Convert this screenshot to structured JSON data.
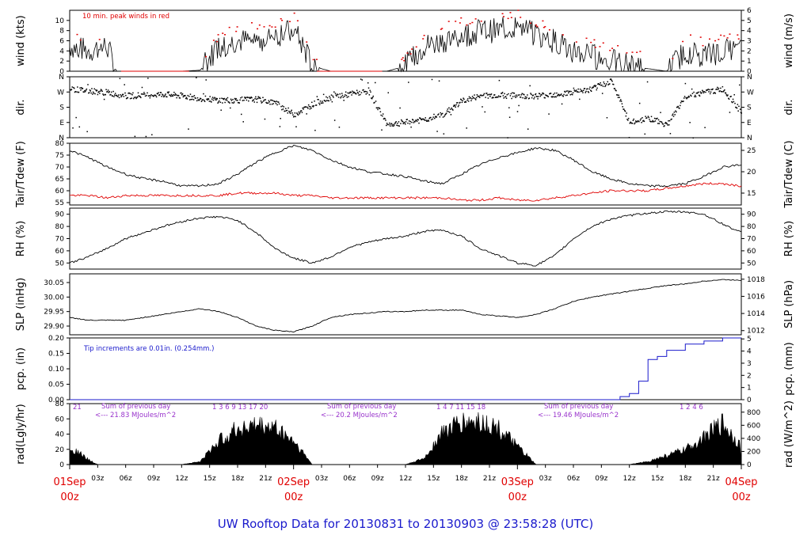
{
  "title": "UW Rooftop Data for 20130831  to  20130903 @ 23:58:28  (UTC)",
  "colors": {
    "red": "#e00000",
    "blue": "#1a1acc",
    "purple": "#9933cc",
    "black": "#000000"
  },
  "x_axis": {
    "hour_ticks": [
      "03z",
      "06z",
      "09z",
      "12z",
      "15z",
      "18z",
      "21z"
    ],
    "day_labels": [
      {
        "date": "01Sep",
        "hour": "00z"
      },
      {
        "date": "02Sep",
        "hour": "00z"
      },
      {
        "date": "03Sep",
        "hour": "00z"
      },
      {
        "date": "04Sep",
        "hour": "00z"
      }
    ]
  },
  "chart_data": [
    {
      "type": "line",
      "id": "wind",
      "ylabel_left": "wind (kts)",
      "ylabel_right": "wind (m/s)",
      "ylim": [
        0,
        12
      ],
      "yticks_left": [
        "0",
        "2",
        "4",
        "6",
        "8",
        "10"
      ],
      "ylim_right": [
        0,
        6
      ],
      "yticks_right": [
        "0",
        "1",
        "2",
        "3",
        "4",
        "5",
        "6"
      ],
      "annotation": "10 min. peak winds in red",
      "x_hours": [
        0,
        2,
        4,
        5,
        6,
        9,
        12,
        14,
        16,
        18,
        20,
        22,
        24,
        25,
        26,
        28,
        30,
        32,
        34,
        36,
        38,
        40,
        42,
        44,
        46,
        48,
        50,
        52,
        54,
        56,
        58,
        60,
        62,
        64,
        66,
        68,
        70,
        72
      ],
      "series": [
        {
          "values": [
            5,
            4,
            5,
            0,
            0,
            0,
            0,
            0.2,
            5,
            6,
            6,
            7,
            8,
            5,
            1,
            0,
            0,
            0,
            0,
            1,
            5,
            6,
            7,
            8,
            8,
            9,
            7,
            6,
            4,
            3,
            2,
            1,
            0.5,
            0,
            4,
            3,
            4,
            4
          ]
        },
        {
          "values": [
            7,
            6,
            7,
            1,
            1,
            1,
            1,
            1,
            7,
            8,
            8,
            9,
            10,
            7,
            2,
            1,
            1,
            1,
            1,
            2,
            7,
            8,
            9,
            10,
            10,
            11,
            9,
            8,
            6,
            5,
            4,
            3,
            2,
            1,
            6,
            5,
            6,
            6
          ]
        }
      ]
    },
    {
      "type": "scatter",
      "id": "dir",
      "ylabel_left": "dir.",
      "ylabel_right": "dir.",
      "yticks": [
        "N",
        "E",
        "S",
        "W",
        "N"
      ],
      "x_hours": [
        0,
        2,
        4,
        6,
        10,
        12,
        14,
        16,
        18,
        20,
        22,
        24,
        26,
        28,
        30,
        32,
        34,
        36,
        38,
        40,
        42,
        44,
        46,
        48,
        50,
        52,
        54,
        56,
        58,
        60,
        62,
        64,
        66,
        68,
        70,
        72
      ],
      "values": [
        290,
        280,
        270,
        250,
        260,
        250,
        235,
        225,
        225,
        230,
        210,
        140,
        200,
        245,
        260,
        280,
        80,
        95,
        110,
        140,
        220,
        250,
        255,
        250,
        250,
        260,
        270,
        290,
        340,
        90,
        120,
        80,
        250,
        270,
        290,
        150
      ]
    },
    {
      "type": "line",
      "id": "temp",
      "ylabel_left": "Tair/Tdew (F)",
      "ylabel_right": "Tair/Tdew (C)",
      "ylim": [
        54,
        80
      ],
      "yticks_left": [
        "55",
        "60",
        "65",
        "70",
        "75",
        "80"
      ],
      "yticks_right": [
        "15",
        "20",
        "25"
      ],
      "x_hours": [
        0,
        2,
        4,
        6,
        8,
        10,
        12,
        14,
        16,
        18,
        20,
        22,
        24,
        26,
        28,
        30,
        32,
        34,
        36,
        38,
        40,
        42,
        44,
        46,
        48,
        50,
        52,
        54,
        56,
        58,
        60,
        62,
        64,
        66,
        68,
        70,
        72
      ],
      "series": [
        {
          "values": [
            77,
            74,
            70,
            67,
            65,
            64,
            62,
            62,
            63,
            67,
            72,
            76,
            79,
            77,
            73,
            70,
            68,
            67,
            66,
            64,
            63,
            67,
            71,
            74,
            76,
            78,
            77,
            73,
            68,
            65,
            63,
            62,
            62,
            63,
            66,
            70,
            71
          ]
        },
        {
          "values": [
            58,
            58,
            57,
            58,
            58,
            58,
            58,
            58,
            58,
            59,
            59,
            59,
            58,
            58,
            57,
            57,
            57,
            57,
            57,
            57,
            57,
            56,
            56,
            57,
            56,
            56,
            57,
            58,
            59,
            60,
            60,
            60,
            61,
            62,
            63,
            63,
            62
          ]
        }
      ]
    },
    {
      "type": "line",
      "id": "rh",
      "ylabel_left": "RH (%)",
      "ylabel_right": "RH (%)",
      "ylim": [
        45,
        95
      ],
      "yticks": [
        "50",
        "60",
        "70",
        "80",
        "90"
      ],
      "x_hours": [
        0,
        2,
        4,
        6,
        8,
        10,
        12,
        14,
        16,
        18,
        20,
        22,
        24,
        26,
        28,
        30,
        32,
        34,
        36,
        38,
        40,
        42,
        44,
        46,
        48,
        50,
        52,
        54,
        56,
        58,
        60,
        62,
        64,
        66,
        68,
        70,
        72
      ],
      "series": [
        {
          "values": [
            50,
            55,
            62,
            70,
            75,
            80,
            84,
            87,
            88,
            85,
            75,
            62,
            54,
            50,
            55,
            63,
            67,
            70,
            72,
            76,
            77,
            72,
            62,
            56,
            50,
            48,
            56,
            70,
            80,
            86,
            89,
            91,
            92,
            92,
            90,
            82,
            75
          ]
        }
      ]
    },
    {
      "type": "line",
      "id": "slp",
      "ylabel_left": "SLP (inHg)",
      "ylabel_right": "SLP (hPa)",
      "ylim": [
        29.87,
        30.08
      ],
      "yticks_left": [
        "29.90",
        "29.95",
        "30.00",
        "30.05"
      ],
      "yticks_right": [
        "1012",
        "1014",
        "1016",
        "1018"
      ],
      "x_hours": [
        0,
        2,
        4,
        6,
        8,
        10,
        12,
        14,
        16,
        18,
        20,
        22,
        24,
        26,
        28,
        30,
        32,
        34,
        36,
        38,
        40,
        42,
        44,
        46,
        48,
        50,
        52,
        54,
        56,
        58,
        60,
        62,
        64,
        66,
        68,
        70,
        72
      ],
      "series": [
        {
          "values": [
            29.93,
            29.92,
            29.92,
            29.92,
            29.93,
            29.94,
            29.95,
            29.96,
            29.95,
            29.93,
            29.9,
            29.885,
            29.88,
            29.9,
            29.93,
            29.94,
            29.945,
            29.95,
            29.95,
            29.955,
            29.955,
            29.955,
            29.94,
            29.935,
            29.93,
            29.94,
            29.96,
            29.985,
            30.0,
            30.01,
            30.02,
            30.03,
            30.04,
            30.045,
            30.055,
            30.06,
            30.058
          ]
        }
      ]
    },
    {
      "type": "line",
      "id": "pcp",
      "ylabel_left": "pcp. (in)",
      "ylabel_right": "pcp. (mm)",
      "ylim": [
        0,
        0.2
      ],
      "yticks_left": [
        "0.00",
        "0.05",
        "0.10",
        "0.15",
        "0.20"
      ],
      "yticks_right": [
        "0",
        "1",
        "2",
        "3",
        "4",
        "5"
      ],
      "annotation": "Tip increments are 0.01in. (0.254mm.)",
      "x_hours": [
        0,
        58,
        59,
        60,
        61,
        62,
        63,
        64,
        66,
        68,
        70,
        72
      ],
      "series": [
        {
          "values": [
            0,
            0,
            0.01,
            0.02,
            0.06,
            0.13,
            0.14,
            0.16,
            0.18,
            0.19,
            0.2,
            0.2
          ]
        }
      ]
    },
    {
      "type": "area",
      "id": "rad",
      "ylabel_left": "rad(Lgly/hr)",
      "ylabel_right": "rad (W/m^2)",
      "ylim": [
        0,
        80
      ],
      "yticks_left": [
        "0",
        "20",
        "40",
        "60",
        "80"
      ],
      "yticks_right": [
        "0",
        "200",
        "400",
        "600",
        "800"
      ],
      "x_hours": [
        0,
        1,
        2,
        3,
        12,
        14,
        16,
        18,
        20,
        22,
        24,
        26,
        36,
        38,
        40,
        42,
        44,
        46,
        48,
        50,
        60,
        62,
        64,
        66,
        68,
        70,
        72
      ],
      "values": [
        28,
        20,
        8,
        0,
        0,
        5,
        40,
        60,
        65,
        62,
        40,
        0,
        0,
        10,
        55,
        70,
        72,
        60,
        30,
        0,
        0,
        5,
        15,
        25,
        45,
        70,
        30
      ],
      "annotations": [
        {
          "label": "Sum of previous day",
          "value": "<--- 21.83 MJoules/m^2"
        },
        {
          "label": "Sum of previous day",
          "value": "<--- 20.2 MJoules/m^2"
        },
        {
          "label": "Sum of previous day",
          "value": "<--- 19.46 MJoules/m^2"
        }
      ],
      "hour_marks": [
        "21",
        "1 3 6 9 13 17 20",
        "1 4 7 11 15 18",
        "1 2 4 6"
      ]
    }
  ]
}
